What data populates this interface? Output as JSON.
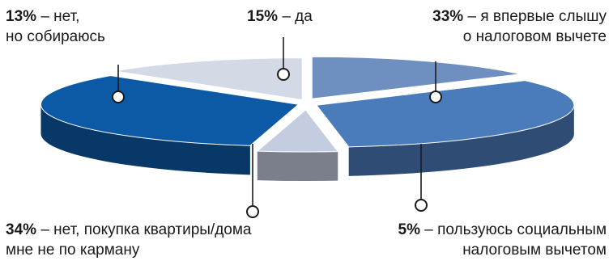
{
  "chart_data": {
    "type": "pie",
    "title": "",
    "slices": [
      {
        "pct": "15%",
        "value": 15,
        "text_lines": [
          "– да"
        ],
        "color": "#6f8fc0"
      },
      {
        "pct": "33%",
        "value": 33,
        "text_lines": [
          "– я впервые слышу",
          "о налоговом вычете"
        ],
        "color": "#4a7bbb"
      },
      {
        "pct": "5%",
        "value": 5,
        "text_lines": [
          "– пользуюсь социальным",
          "налоговым вычетом"
        ],
        "color": "#c4cde0"
      },
      {
        "pct": "34%",
        "value": 34,
        "text_lines": [
          "– нет, покупка квартиры/дома",
          "мне не по карману"
        ],
        "color": "#0c5aa6"
      },
      {
        "pct": "13%",
        "value": 13,
        "text_lines": [
          "– нет,",
          "но собираюсь"
        ],
        "color": "#d3dae6"
      }
    ]
  }
}
